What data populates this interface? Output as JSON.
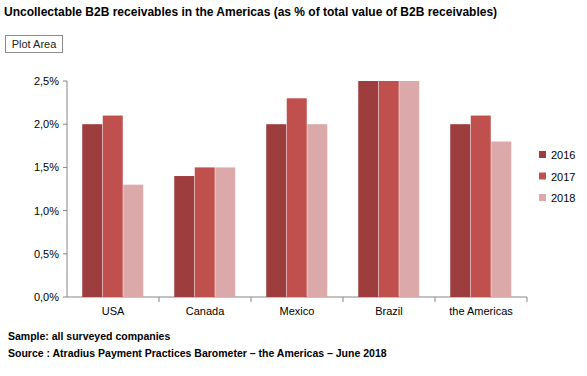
{
  "chart_data": {
    "type": "bar",
    "title": "Uncollectable B2B receivables in the Americas (as % of total value of B2B receivables)",
    "annotations": [
      "Plot Area",
      "Sample: all surveyed companies",
      "Source : Atradius Payment Practices Barometer – the Americas – June 2018"
    ],
    "categories": [
      "USA",
      "Canada",
      "Mexico",
      "Brazil",
      "the Americas"
    ],
    "series": [
      {
        "name": "2016",
        "color": "#9e3d3d",
        "values": [
          2.0,
          1.4,
          2.0,
          2.5,
          2.0
        ]
      },
      {
        "name": "2017",
        "color": "#c0504d",
        "values": [
          2.1,
          1.5,
          2.3,
          2.5,
          2.1
        ]
      },
      {
        "name": "2018",
        "color": "#dba9a9",
        "values": [
          1.3,
          1.5,
          2.0,
          2.5,
          1.8
        ]
      }
    ],
    "ylim": [
      0,
      2.5
    ],
    "yticks": [
      {
        "value": 0,
        "label": "0,0%"
      },
      {
        "value": 0.5,
        "label": "0,5%"
      },
      {
        "value": 1,
        "label": "1,0%"
      },
      {
        "value": 1.5,
        "label": "1,5%"
      },
      {
        "value": 2,
        "label": "2,0%"
      },
      {
        "value": 2.5,
        "label": "2,5%"
      }
    ],
    "grid": false,
    "legend": "right"
  }
}
